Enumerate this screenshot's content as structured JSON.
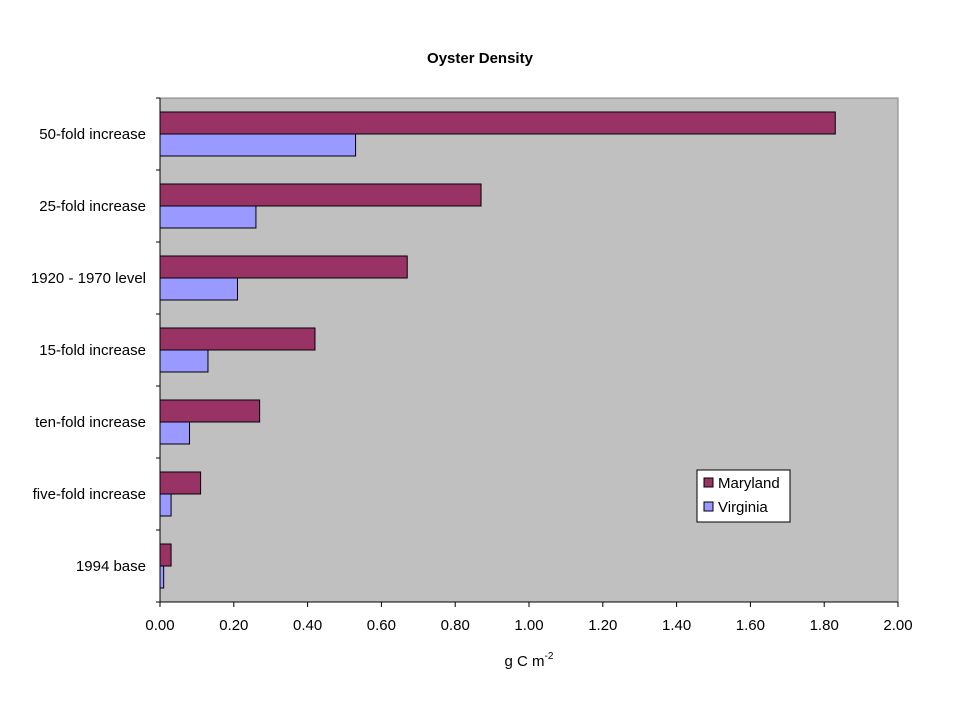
{
  "chart_data": {
    "type": "bar",
    "orientation": "horizontal",
    "title": "Oyster Density",
    "xlabel": "g C m",
    "xlabel_superscript": "-2",
    "ylabel": "",
    "categories": [
      "50-fold increase",
      "25-fold increase",
      "1920 - 1970 level",
      "15-fold increase",
      "ten-fold increase",
      "five-fold increase",
      "1994 base"
    ],
    "series": [
      {
        "name": "Maryland",
        "color": "#993366",
        "values": [
          1.83,
          0.87,
          0.67,
          0.42,
          0.27,
          0.11,
          0.03
        ]
      },
      {
        "name": "Virginia",
        "color": "#9999ff",
        "values": [
          0.53,
          0.26,
          0.21,
          0.13,
          0.08,
          0.03,
          0.01
        ]
      }
    ],
    "xlim": [
      0,
      2.0
    ],
    "xticks": [
      "0.00",
      "0.20",
      "0.40",
      "0.60",
      "0.80",
      "1.00",
      "1.20",
      "1.40",
      "1.60",
      "1.80",
      "2.00"
    ],
    "grid": false,
    "plot_background": "#c0c0c0",
    "legend_position": "lower-right"
  }
}
